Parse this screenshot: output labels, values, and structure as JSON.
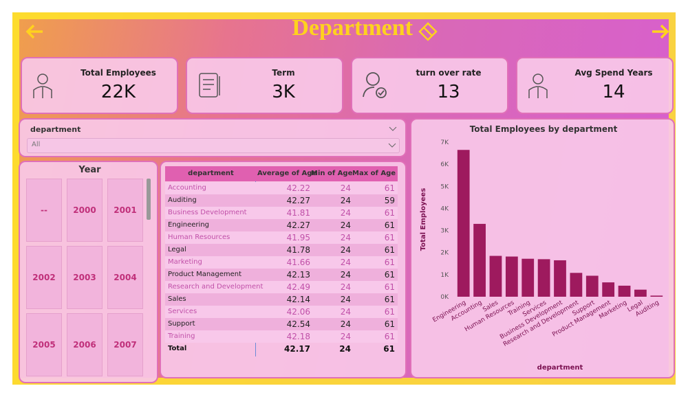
{
  "header": {
    "title": "Department"
  },
  "cards": [
    {
      "label": "Total Employees",
      "value": "22K"
    },
    {
      "label": "Term",
      "value": "3K"
    },
    {
      "label": "turn over rate",
      "value": "13"
    },
    {
      "label": "Avg Spend Years",
      "value": "14"
    }
  ],
  "filter": {
    "label": "department",
    "selection": "All"
  },
  "year_slicer": {
    "title": "Year",
    "items": [
      "--",
      "2000",
      "2001",
      "2002",
      "2003",
      "2004",
      "2005",
      "2006",
      "2007"
    ]
  },
  "table": {
    "columns": [
      "department",
      "Average of Age",
      "Min of Age",
      "Max of Age"
    ],
    "rows": [
      [
        "Accounting",
        42.22,
        24,
        61
      ],
      [
        "Auditing",
        42.27,
        24,
        59
      ],
      [
        "Business Development",
        41.81,
        24,
        61
      ],
      [
        "Engineering",
        42.27,
        24,
        61
      ],
      [
        "Human Resources",
        41.95,
        24,
        61
      ],
      [
        "Legal",
        41.78,
        24,
        61
      ],
      [
        "Marketing",
        41.66,
        24,
        61
      ],
      [
        "Product Management",
        42.13,
        24,
        61
      ],
      [
        "Research and Development",
        42.49,
        24,
        61
      ],
      [
        "Sales",
        42.14,
        24,
        61
      ],
      [
        "Services",
        42.06,
        24,
        61
      ],
      [
        "Support",
        42.54,
        24,
        61
      ],
      [
        "Training",
        42.18,
        24,
        61
      ]
    ],
    "total": [
      "Total",
      42.17,
      24,
      61
    ]
  },
  "chart_data": {
    "type": "bar",
    "title": "Total Employees by department",
    "x_label": "department",
    "y_label": "Total Employees",
    "categories": [
      "Engineering",
      "Accounting",
      "Sales",
      "Human Resources",
      "Training",
      "Services",
      "Business Development",
      "Research and Development",
      "Support",
      "Product Management",
      "Marketing",
      "Legal",
      "Auditing"
    ],
    "values": [
      6650,
      3300,
      1850,
      1820,
      1720,
      1700,
      1650,
      1080,
      950,
      650,
      500,
      320,
      50
    ],
    "color": "#9e1a5e",
    "ylim": [
      0,
      7000
    ],
    "yticks": [
      {
        "value": 0,
        "label": "0K"
      },
      {
        "value": 1000,
        "label": "1K"
      },
      {
        "value": 2000,
        "label": "2K"
      },
      {
        "value": 3000,
        "label": "3K"
      },
      {
        "value": 4000,
        "label": "4K"
      },
      {
        "value": 5000,
        "label": "5K"
      },
      {
        "value": 6000,
        "label": "6K"
      },
      {
        "value": 7000,
        "label": "7K"
      }
    ]
  }
}
